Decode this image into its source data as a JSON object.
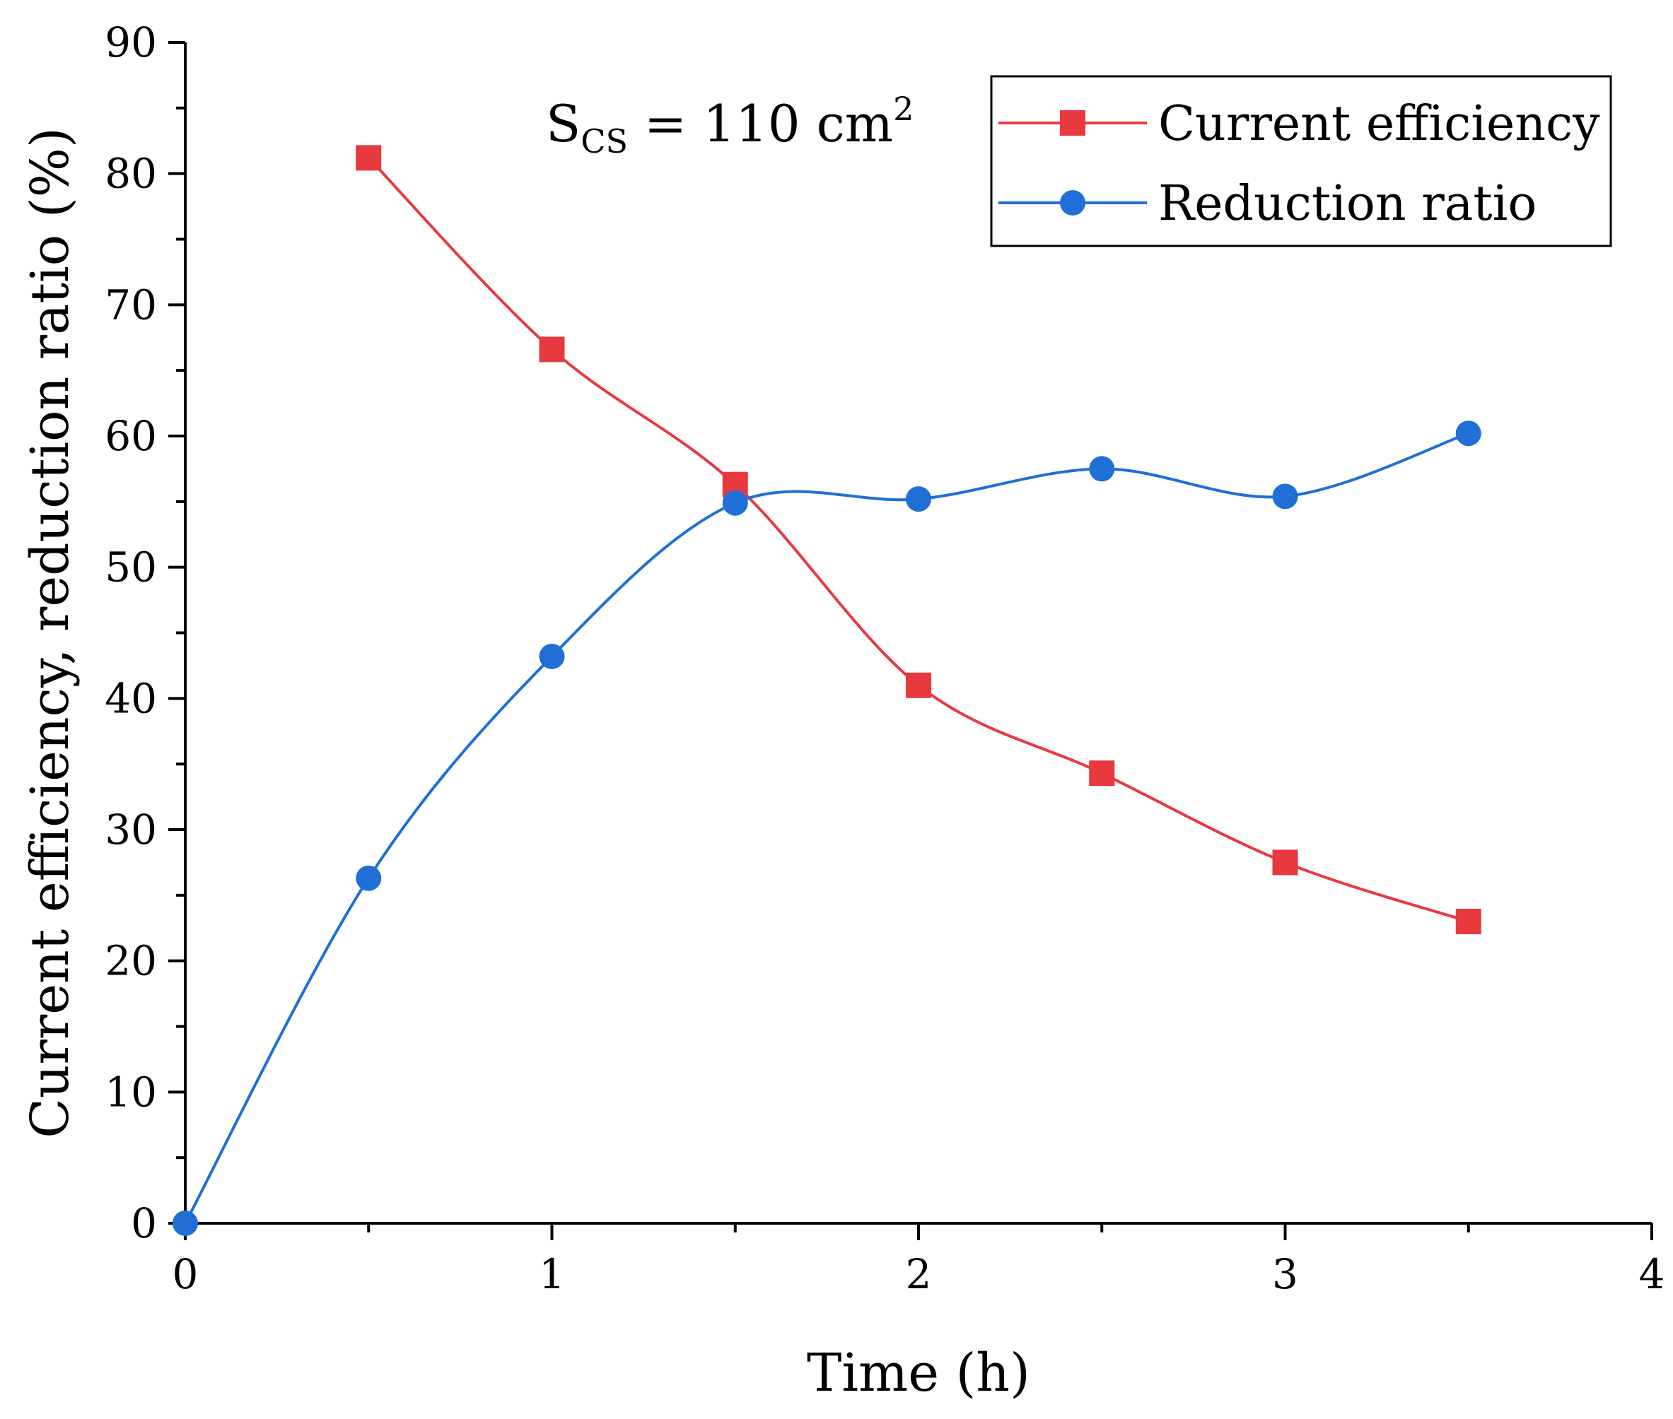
{
  "chart_data": {
    "type": "line",
    "title": "",
    "xlabel": "Time (h)",
    "ylabel": "Current efficiency, reduction ratio (%)",
    "xlim": [
      0,
      4
    ],
    "ylim": [
      0,
      90
    ],
    "x_ticks": [
      0,
      1,
      2,
      3,
      4
    ],
    "x_tick_labels": [
      "0",
      "1",
      "2",
      "3",
      "4"
    ],
    "y_ticks": [
      0,
      10,
      20,
      30,
      40,
      50,
      60,
      70,
      80,
      90
    ],
    "y_tick_labels": [
      "0",
      "10",
      "20",
      "30",
      "40",
      "50",
      "60",
      "70",
      "80",
      "90"
    ],
    "grid": false,
    "legend_position": "top-right",
    "series": [
      {
        "name": "Current efficiency",
        "color": "#e8393f",
        "marker": "square",
        "x": [
          0.5,
          1.0,
          1.5,
          2.0,
          2.5,
          3.0,
          3.5
        ],
        "values": [
          81.2,
          66.6,
          56.3,
          41.0,
          34.3,
          27.5,
          23.0
        ]
      },
      {
        "name": "Reduction ratio",
        "color": "#1f6fd6",
        "marker": "circle",
        "x": [
          0,
          0.5,
          1.0,
          1.5,
          2.0,
          2.5,
          3.0,
          3.5
        ],
        "values": [
          0,
          26.3,
          43.2,
          54.9,
          55.2,
          57.5,
          55.4,
          60.2
        ]
      }
    ],
    "annotation": {
      "base": "S",
      "subscript": "CS",
      "text": " = 110 cm",
      "superscript": "2"
    }
  }
}
